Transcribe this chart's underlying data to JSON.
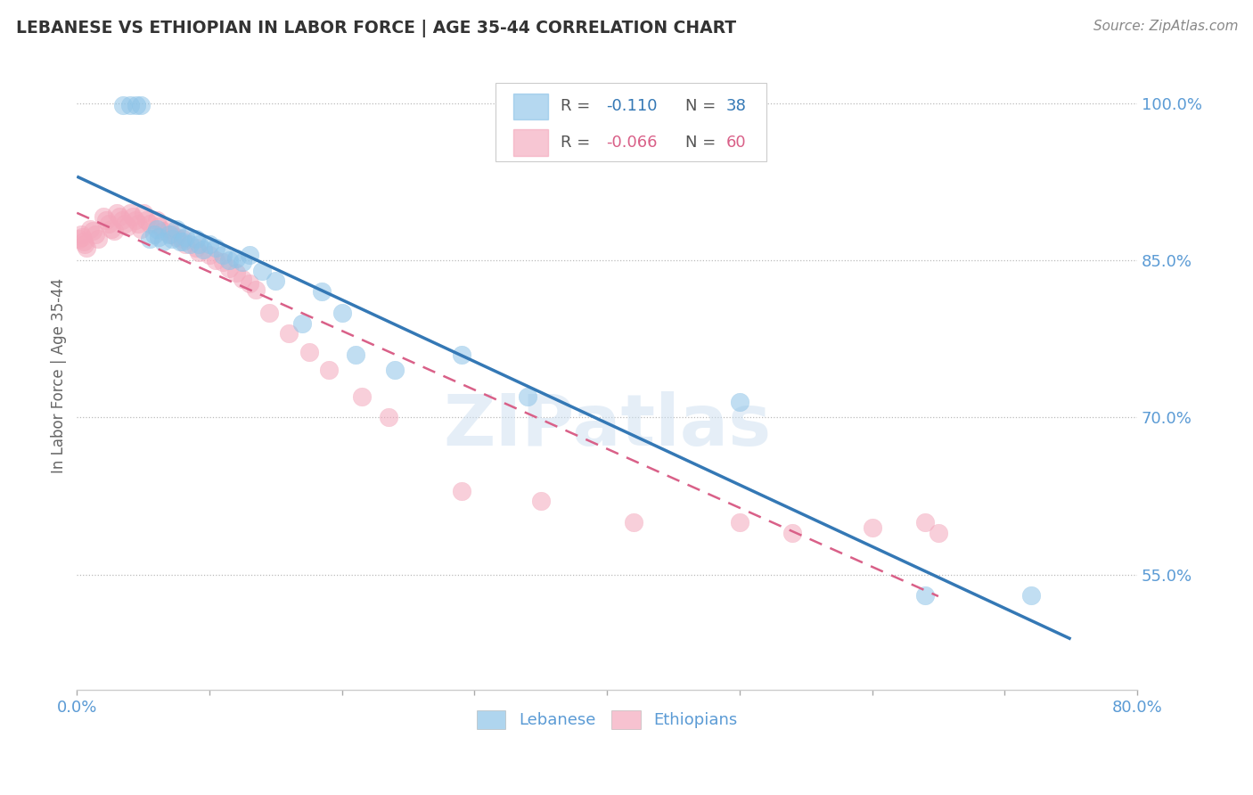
{
  "title": "LEBANESE VS ETHIOPIAN IN LABOR FORCE | AGE 35-44 CORRELATION CHART",
  "source": "Source: ZipAtlas.com",
  "ylabel": "In Labor Force | Age 35-44",
  "watermark": "ZIPatlas",
  "background_color": "#ffffff",
  "blue_color": "#8ec4e8",
  "pink_color": "#f4a8bc",
  "blue_line_color": "#3478b5",
  "pink_line_color": "#d96088",
  "axis_color": "#5b9bd5",
  "grid_color": "#bbbbbb",
  "xlim": [
    0.0,
    0.8
  ],
  "ylim": [
    0.44,
    1.04
  ],
  "yticks": [
    0.55,
    0.7,
    0.85,
    1.0
  ],
  "ytick_labels": [
    "55.0%",
    "70.0%",
    "85.0%",
    "100.0%"
  ],
  "xticks": [
    0.0,
    0.1,
    0.2,
    0.3,
    0.4,
    0.5,
    0.6,
    0.7,
    0.8
  ],
  "xtick_labels": [
    "0.0%",
    "",
    "",
    "",
    "",
    "",
    "",
    "",
    "80.0%"
  ],
  "lebanese_x": [
    0.035,
    0.04,
    0.045,
    0.048,
    0.055,
    0.058,
    0.06,
    0.062,
    0.065,
    0.07,
    0.072,
    0.075,
    0.078,
    0.08,
    0.082,
    0.085,
    0.09,
    0.092,
    0.095,
    0.1,
    0.105,
    0.11,
    0.115,
    0.12,
    0.125,
    0.13,
    0.14,
    0.15,
    0.17,
    0.185,
    0.2,
    0.21,
    0.24,
    0.29,
    0.34,
    0.5,
    0.64,
    0.72
  ],
  "lebanese_y": [
    0.998,
    0.998,
    0.998,
    0.998,
    0.87,
    0.875,
    0.88,
    0.872,
    0.868,
    0.875,
    0.87,
    0.88,
    0.868,
    0.868,
    0.872,
    0.865,
    0.87,
    0.865,
    0.86,
    0.865,
    0.862,
    0.855,
    0.85,
    0.852,
    0.848,
    0.855,
    0.84,
    0.83,
    0.79,
    0.82,
    0.8,
    0.76,
    0.745,
    0.76,
    0.72,
    0.715,
    0.53,
    0.53
  ],
  "ethiopian_x": [
    0.002,
    0.003,
    0.004,
    0.005,
    0.006,
    0.007,
    0.01,
    0.012,
    0.014,
    0.016,
    0.02,
    0.022,
    0.024,
    0.026,
    0.028,
    0.03,
    0.032,
    0.034,
    0.036,
    0.038,
    0.04,
    0.042,
    0.044,
    0.046,
    0.048,
    0.05,
    0.052,
    0.055,
    0.06,
    0.062,
    0.065,
    0.07,
    0.072,
    0.075,
    0.08,
    0.082,
    0.09,
    0.092,
    0.1,
    0.105,
    0.11,
    0.115,
    0.12,
    0.125,
    0.13,
    0.135,
    0.145,
    0.16,
    0.175,
    0.19,
    0.215,
    0.235,
    0.29,
    0.35,
    0.42,
    0.5,
    0.54,
    0.6,
    0.64,
    0.65
  ],
  "ethiopian_y": [
    0.87,
    0.875,
    0.872,
    0.868,
    0.865,
    0.862,
    0.88,
    0.878,
    0.875,
    0.87,
    0.892,
    0.888,
    0.885,
    0.88,
    0.878,
    0.895,
    0.892,
    0.888,
    0.885,
    0.882,
    0.895,
    0.892,
    0.888,
    0.885,
    0.88,
    0.895,
    0.888,
    0.885,
    0.888,
    0.882,
    0.878,
    0.88,
    0.875,
    0.872,
    0.87,
    0.865,
    0.862,
    0.858,
    0.855,
    0.85,
    0.848,
    0.842,
    0.838,
    0.832,
    0.828,
    0.822,
    0.8,
    0.78,
    0.762,
    0.745,
    0.72,
    0.7,
    0.63,
    0.62,
    0.6,
    0.6,
    0.59,
    0.595,
    0.6,
    0.59
  ]
}
